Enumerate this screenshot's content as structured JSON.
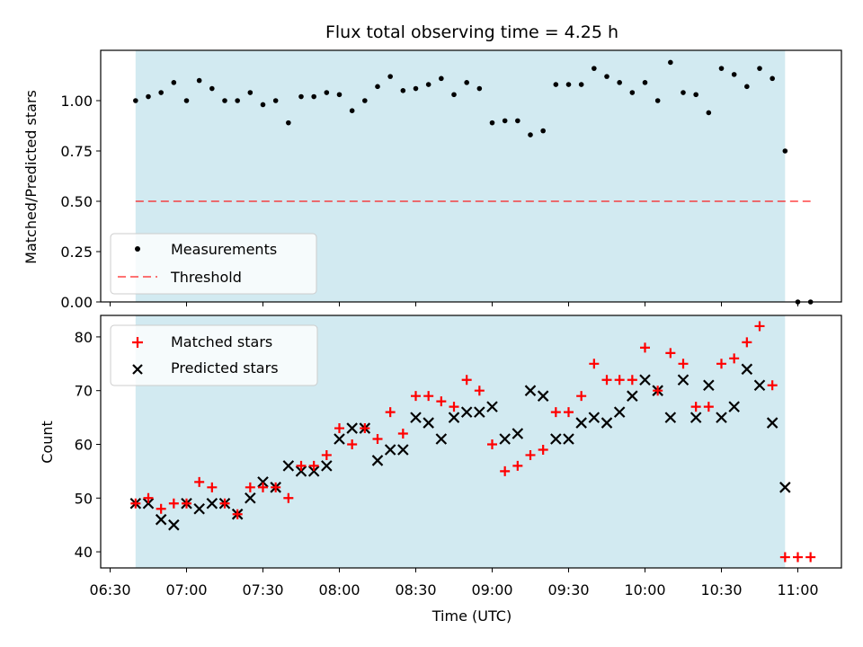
{
  "chart_data": {
    "title": "Flux total observing time = 4.25 h",
    "xlabel": "Time (UTC)",
    "xticks": [
      "06:30",
      "07:00",
      "07:30",
      "08:00",
      "08:30",
      "09:00",
      "09:30",
      "10:00",
      "10:30",
      "11:00"
    ],
    "observing_window": [
      "06:40",
      "10:55"
    ],
    "colors": {
      "window": "#add8e6",
      "threshold": "#ff0000",
      "matched": "#ff0000",
      "predicted": "#000000",
      "measurement": "#000000"
    },
    "top": {
      "type": "scatter",
      "ylabel": "Matched/Predicted stars",
      "ylim": [
        0,
        1.25
      ],
      "yticks": [
        "0.00",
        "0.25",
        "0.50",
        "0.75",
        "1.00"
      ],
      "threshold": 0.5,
      "threshold_range": [
        "06:40",
        "11:05"
      ],
      "legend": {
        "position": "lower-left",
        "items": [
          "Measurements",
          "Threshold"
        ]
      },
      "series": [
        {
          "name": "Measurements",
          "x": [
            "06:40",
            "06:45",
            "06:50",
            "06:55",
            "07:00",
            "07:05",
            "07:10",
            "07:15",
            "07:20",
            "07:25",
            "07:30",
            "07:35",
            "07:40",
            "07:45",
            "07:50",
            "07:55",
            "08:00",
            "08:05",
            "08:10",
            "08:15",
            "08:20",
            "08:25",
            "08:30",
            "08:35",
            "08:40",
            "08:45",
            "08:50",
            "08:55",
            "09:00",
            "09:05",
            "09:10",
            "09:15",
            "09:20",
            "09:25",
            "09:30",
            "09:35",
            "09:40",
            "09:45",
            "09:50",
            "09:55",
            "10:00",
            "10:05",
            "10:10",
            "10:15",
            "10:20",
            "10:25",
            "10:30",
            "10:35",
            "10:40",
            "10:45",
            "10:50",
            "10:55",
            "11:00",
            "11:05"
          ],
          "y": [
            1.0,
            1.02,
            1.04,
            1.09,
            1.0,
            1.1,
            1.06,
            1.0,
            1.0,
            1.04,
            0.98,
            1.0,
            0.89,
            1.02,
            1.02,
            1.04,
            1.03,
            0.95,
            1.0,
            1.07,
            1.12,
            1.05,
            1.06,
            1.08,
            1.11,
            1.03,
            1.09,
            1.06,
            0.89,
            0.9,
            0.9,
            0.83,
            0.85,
            1.08,
            1.08,
            1.08,
            1.16,
            1.12,
            1.09,
            1.04,
            1.09,
            1.0,
            1.19,
            1.04,
            1.03,
            0.94,
            1.16,
            1.13,
            1.07,
            1.16,
            1.11,
            0.75,
            0.0,
            0.0
          ]
        }
      ]
    },
    "bottom": {
      "type": "scatter",
      "ylabel": "Count",
      "ylim": [
        37,
        84
      ],
      "yticks": [
        "40",
        "50",
        "60",
        "70",
        "80"
      ],
      "legend": {
        "position": "upper-left",
        "items": [
          "Matched stars",
          "Predicted stars"
        ]
      },
      "series": [
        {
          "name": "Matched stars",
          "x": [
            "06:40",
            "06:45",
            "06:50",
            "06:55",
            "07:00",
            "07:05",
            "07:10",
            "07:15",
            "07:20",
            "07:25",
            "07:30",
            "07:35",
            "07:40",
            "07:45",
            "07:50",
            "07:55",
            "08:00",
            "08:05",
            "08:10",
            "08:15",
            "08:20",
            "08:25",
            "08:30",
            "08:35",
            "08:40",
            "08:45",
            "08:50",
            "08:55",
            "09:00",
            "09:05",
            "09:10",
            "09:15",
            "09:20",
            "09:25",
            "09:30",
            "09:35",
            "09:40",
            "09:45",
            "09:50",
            "09:55",
            "10:00",
            "10:05",
            "10:10",
            "10:15",
            "10:20",
            "10:25",
            "10:30",
            "10:35",
            "10:40",
            "10:45",
            "10:50",
            "10:55",
            "11:00",
            "11:05"
          ],
          "y": [
            49,
            50,
            48,
            49,
            49,
            53,
            52,
            49,
            47,
            52,
            52,
            52,
            50,
            56,
            56,
            58,
            63,
            60,
            63,
            61,
            66,
            62,
            69,
            69,
            68,
            67,
            72,
            70,
            60,
            55,
            56,
            58,
            59,
            66,
            66,
            69,
            75,
            72,
            72,
            72,
            78,
            70,
            77,
            75,
            67,
            67,
            75,
            76,
            79,
            82,
            71,
            39,
            39,
            39
          ]
        },
        {
          "name": "Predicted stars",
          "x": [
            "06:40",
            "06:45",
            "06:50",
            "06:55",
            "07:00",
            "07:05",
            "07:10",
            "07:15",
            "07:20",
            "07:25",
            "07:30",
            "07:35",
            "07:40",
            "07:45",
            "07:50",
            "07:55",
            "08:00",
            "08:05",
            "08:10",
            "08:15",
            "08:20",
            "08:25",
            "08:30",
            "08:35",
            "08:40",
            "08:45",
            "08:50",
            "08:55",
            "09:00",
            "09:05",
            "09:10",
            "09:15",
            "09:20",
            "09:25",
            "09:30",
            "09:35",
            "09:40",
            "09:45",
            "09:50",
            "09:55",
            "10:00",
            "10:05",
            "10:10",
            "10:15",
            "10:20",
            "10:25",
            "10:30",
            "10:35",
            "10:40",
            "10:45",
            "10:50",
            "10:55"
          ],
          "y": [
            49,
            49,
            46,
            45,
            49,
            48,
            49,
            49,
            47,
            50,
            53,
            52,
            56,
            55,
            55,
            56,
            61,
            63,
            63,
            57,
            59,
            59,
            65,
            64,
            61,
            65,
            66,
            66,
            67,
            61,
            62,
            70,
            69,
            61,
            61,
            64,
            65,
            64,
            66,
            69,
            72,
            70,
            65,
            72,
            65,
            71,
            65,
            67,
            74,
            71,
            64,
            52
          ]
        }
      ]
    }
  }
}
